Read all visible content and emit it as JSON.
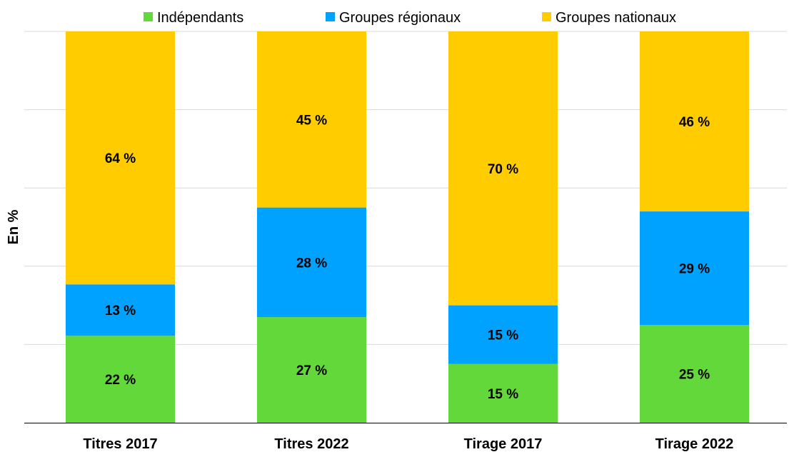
{
  "chart_data": {
    "type": "bar",
    "stacked": true,
    "categories": [
      "Titres 2017",
      "Titres 2022",
      "Tirage 2017",
      "Tirage 2022"
    ],
    "series": [
      {
        "name": "Indépendants",
        "color": "#62d83a",
        "values": [
          22,
          27,
          15,
          25
        ],
        "labels": [
          "22 %",
          "27 %",
          "15 %",
          "25 %"
        ]
      },
      {
        "name": "Groupes régionaux",
        "color": "#00a2ff",
        "values": [
          13,
          28,
          15,
          29
        ],
        "labels": [
          "13 %",
          "28 %",
          "15 %",
          "29 %"
        ]
      },
      {
        "name": "Groupes nationaux",
        "color": "#ffcc00",
        "values": [
          64,
          45,
          70,
          46
        ],
        "labels": [
          "64 %",
          "45 %",
          "70 %",
          "46 %"
        ]
      }
    ],
    "ylabel": "En %",
    "ylim": [
      0,
      100
    ],
    "grid": true,
    "legend": "top"
  }
}
